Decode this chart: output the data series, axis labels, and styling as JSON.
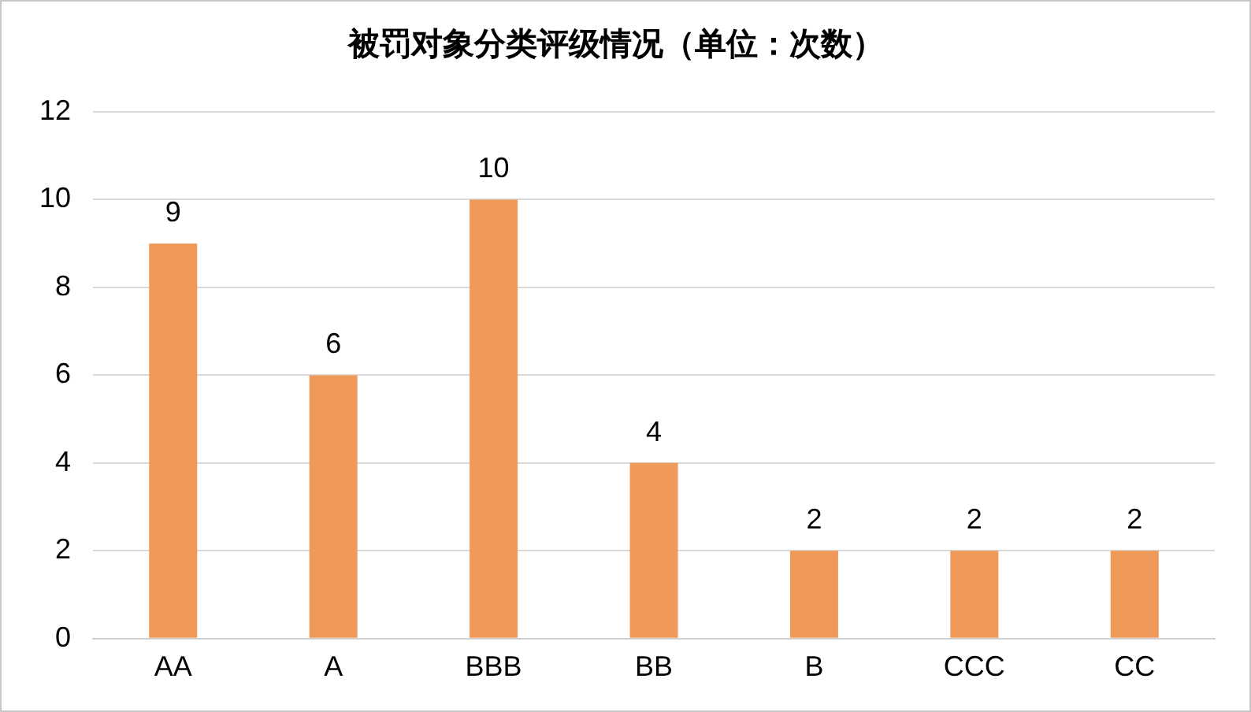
{
  "chart_data": {
    "type": "bar",
    "title": "被罚对象分类评级情况（单位：次数）",
    "categories": [
      "AA",
      "A",
      "BBB",
      "BB",
      "B",
      "CCC",
      "CC"
    ],
    "values": [
      9,
      6,
      10,
      4,
      2,
      2,
      2
    ],
    "color": "#f09a5a",
    "ylim": [
      0,
      12
    ],
    "yticks": [
      0,
      2,
      4,
      6,
      8,
      10,
      12
    ],
    "grid": "y",
    "legend": false,
    "data_labels": true
  }
}
